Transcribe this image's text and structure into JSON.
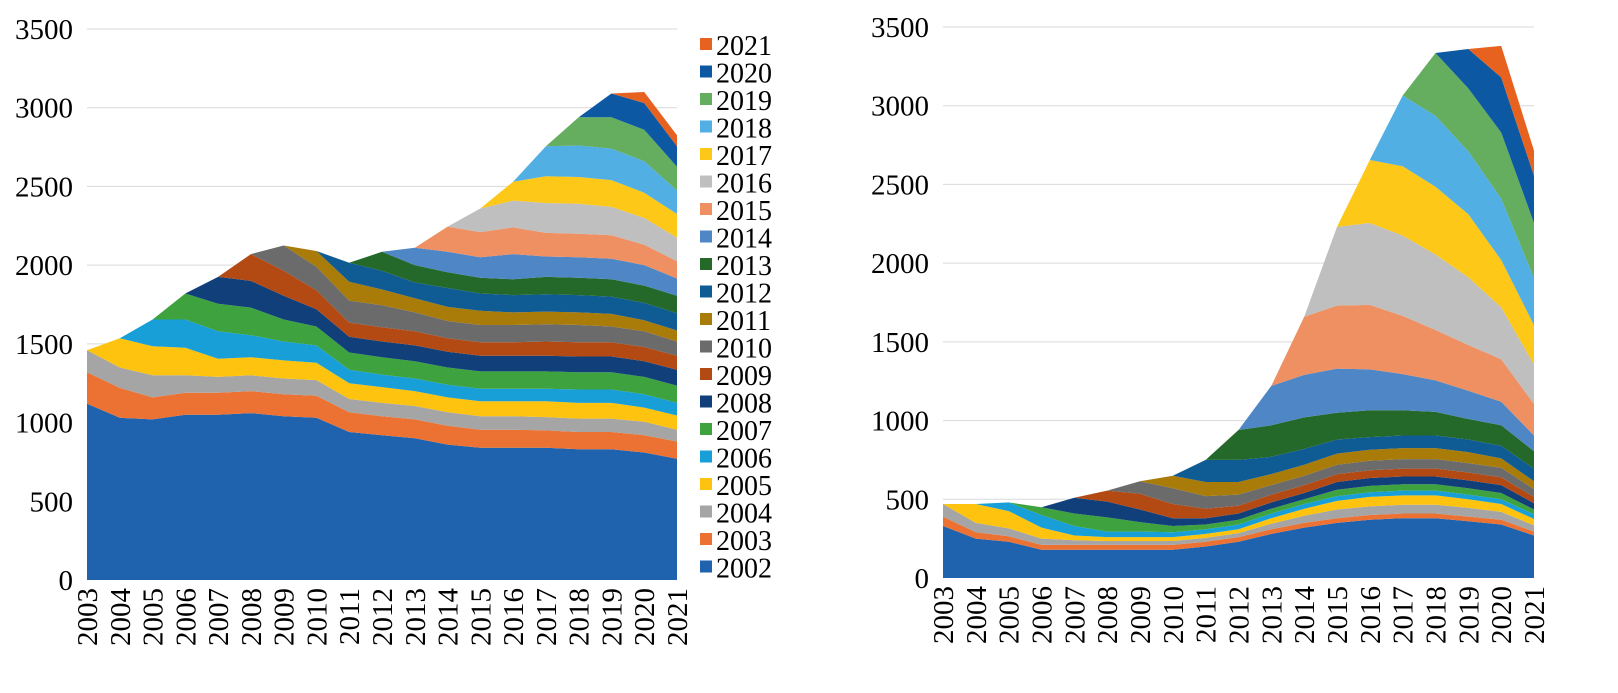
{
  "colors": {
    "2002": "#1f63ae",
    "2003": "#ec7234",
    "2004": "#a5a5a5",
    "2005": "#fdc30f",
    "2006": "#189fd8",
    "2007": "#3ea33f",
    "2008": "#113f7a",
    "2009": "#b34a14",
    "2010": "#6b6b6b",
    "2011": "#a97b08",
    "2012": "#0f5b93",
    "2013": "#24692a",
    "2014": "#4f86c6",
    "2015": "#ef9062",
    "2016": "#bfbfbf",
    "2017": "#fdc818",
    "2018": "#52afe3",
    "2019": "#65ad5f",
    "2020": "#0d58a3",
    "2021": "#e8621f"
  },
  "legend": [
    "2021",
    "2020",
    "2019",
    "2018",
    "2017",
    "2016",
    "2015",
    "2014",
    "2013",
    "2012",
    "2011",
    "2010",
    "2009",
    "2008",
    "2007",
    "2006",
    "2005",
    "2004",
    "2003",
    "2002"
  ],
  "chart_data": [
    {
      "type": "area",
      "stacked": true,
      "x": [
        "2003",
        "2004",
        "2005",
        "2006",
        "2007",
        "2008",
        "2009",
        "2010",
        "2011",
        "2012",
        "2013",
        "2014",
        "2015",
        "2016",
        "2017",
        "2018",
        "2019",
        "2020",
        "2021"
      ],
      "ylim": [
        0,
        3500
      ],
      "yticks": [
        0,
        500,
        1000,
        1500,
        2000,
        2500,
        3000,
        3500
      ],
      "grid": true,
      "legend_position": "right",
      "series": [
        {
          "name": "2002",
          "values": [
            1120,
            1030,
            1020,
            1050,
            1050,
            1060,
            1040,
            1030,
            940,
            920,
            900,
            860,
            840,
            840,
            840,
            830,
            830,
            810,
            770
          ]
        },
        {
          "name": "2003",
          "values": [
            200,
            190,
            140,
            140,
            140,
            140,
            140,
            140,
            125,
            120,
            120,
            120,
            115,
            115,
            110,
            110,
            110,
            110,
            110
          ]
        },
        {
          "name": "2004",
          "values": [
            140,
            130,
            140,
            110,
            100,
            100,
            100,
            100,
            85,
            85,
            85,
            85,
            85,
            85,
            85,
            85,
            85,
            85,
            75
          ]
        },
        {
          "name": "2005",
          "values": [
            null,
            185,
            185,
            175,
            115,
            115,
            115,
            110,
            100,
            100,
            95,
            95,
            95,
            95,
            100,
            100,
            100,
            90,
            90
          ]
        },
        {
          "name": "2006",
          "values": [
            null,
            null,
            170,
            180,
            175,
            140,
            120,
            110,
            85,
            80,
            80,
            80,
            80,
            80,
            80,
            85,
            85,
            85,
            80
          ]
        },
        {
          "name": "2007",
          "values": [
            null,
            null,
            null,
            165,
            175,
            175,
            140,
            120,
            110,
            110,
            110,
            110,
            110,
            110,
            110,
            110,
            110,
            110,
            110
          ]
        },
        {
          "name": "2008",
          "values": [
            null,
            null,
            null,
            null,
            170,
            170,
            150,
            110,
            100,
            100,
            100,
            100,
            100,
            100,
            100,
            100,
            100,
            100,
            100
          ]
        },
        {
          "name": "2009",
          "values": [
            null,
            null,
            null,
            null,
            null,
            170,
            160,
            120,
            90,
            90,
            90,
            85,
            85,
            85,
            90,
            90,
            90,
            90,
            90
          ]
        },
        {
          "name": "2010",
          "values": [
            null,
            null,
            null,
            null,
            null,
            null,
            160,
            150,
            140,
            140,
            120,
            110,
            110,
            110,
            110,
            110,
            100,
            100,
            90
          ]
        },
        {
          "name": "2011",
          "values": [
            null,
            null,
            null,
            null,
            null,
            null,
            null,
            100,
            120,
            100,
            90,
            90,
            90,
            80,
            80,
            80,
            80,
            70,
            70
          ]
        },
        {
          "name": "2012",
          "values": [
            null,
            null,
            null,
            null,
            null,
            null,
            null,
            null,
            120,
            120,
            100,
            120,
            110,
            110,
            110,
            110,
            110,
            110,
            110
          ]
        },
        {
          "name": "2013",
          "values": [
            null,
            null,
            null,
            null,
            null,
            null,
            null,
            null,
            null,
            120,
            110,
            100,
            100,
            100,
            110,
            110,
            110,
            110,
            110
          ]
        },
        {
          "name": "2014",
          "values": [
            null,
            null,
            null,
            null,
            null,
            null,
            null,
            null,
            null,
            null,
            110,
            130,
            130,
            160,
            130,
            130,
            130,
            130,
            110
          ]
        },
        {
          "name": "2015",
          "values": [
            null,
            null,
            null,
            null,
            null,
            null,
            null,
            null,
            null,
            null,
            null,
            160,
            160,
            170,
            150,
            150,
            150,
            130,
            110
          ]
        },
        {
          "name": "2016",
          "values": [
            null,
            null,
            null,
            null,
            null,
            null,
            null,
            null,
            null,
            null,
            null,
            null,
            150,
            170,
            190,
            190,
            180,
            170,
            150
          ]
        },
        {
          "name": "2017",
          "values": [
            null,
            null,
            null,
            null,
            null,
            null,
            null,
            null,
            null,
            null,
            null,
            null,
            null,
            120,
            170,
            170,
            170,
            160,
            150
          ]
        },
        {
          "name": "2018",
          "values": [
            null,
            null,
            null,
            null,
            null,
            null,
            null,
            null,
            null,
            null,
            null,
            null,
            null,
            null,
            190,
            200,
            200,
            200,
            150
          ]
        },
        {
          "name": "2019",
          "values": [
            null,
            null,
            null,
            null,
            null,
            null,
            null,
            null,
            null,
            null,
            null,
            null,
            null,
            null,
            null,
            180,
            200,
            200,
            150
          ]
        },
        {
          "name": "2020",
          "values": [
            null,
            null,
            null,
            null,
            null,
            null,
            null,
            null,
            null,
            null,
            null,
            null,
            null,
            null,
            null,
            null,
            150,
            170,
            130
          ]
        },
        {
          "name": "2021",
          "values": [
            null,
            null,
            null,
            null,
            null,
            null,
            null,
            null,
            null,
            null,
            null,
            null,
            null,
            null,
            null,
            null,
            null,
            70,
            70
          ]
        }
      ]
    },
    {
      "type": "area",
      "stacked": true,
      "x": [
        "2003",
        "2004",
        "2005",
        "2006",
        "2007",
        "2008",
        "2009",
        "2010",
        "2011",
        "2012",
        "2013",
        "2014",
        "2015",
        "2016",
        "2017",
        "2018",
        "2019",
        "2020",
        "2021"
      ],
      "ylim": [
        0,
        3500
      ],
      "yticks": [
        0,
        500,
        1000,
        1500,
        2000,
        2500,
        3000,
        3500
      ],
      "grid": true,
      "series": [
        {
          "name": "2002",
          "values": [
            330,
            250,
            230,
            180,
            180,
            180,
            180,
            180,
            200,
            230,
            280,
            320,
            350,
            370,
            380,
            380,
            360,
            340,
            270
          ]
        },
        {
          "name": "2003",
          "values": [
            60,
            40,
            35,
            30,
            30,
            30,
            30,
            30,
            30,
            30,
            30,
            30,
            30,
            30,
            30,
            30,
            30,
            30,
            25
          ]
        },
        {
          "name": "2004",
          "values": [
            80,
            60,
            50,
            40,
            30,
            25,
            25,
            25,
            25,
            25,
            35,
            45,
            55,
            55,
            55,
            55,
            55,
            50,
            40
          ]
        },
        {
          "name": "2005",
          "values": [
            null,
            120,
            110,
            70,
            30,
            25,
            25,
            25,
            25,
            25,
            35,
            45,
            55,
            60,
            60,
            60,
            55,
            50,
            40
          ]
        },
        {
          "name": "2006",
          "values": [
            null,
            null,
            55,
            80,
            60,
            35,
            35,
            30,
            30,
            30,
            30,
            30,
            30,
            30,
            30,
            30,
            30,
            30,
            30
          ]
        },
        {
          "name": "2007",
          "values": [
            null,
            null,
            null,
            50,
            80,
            90,
            60,
            40,
            30,
            30,
            30,
            30,
            40,
            40,
            40,
            40,
            40,
            40,
            30
          ]
        },
        {
          "name": "2008",
          "values": [
            null,
            null,
            null,
            null,
            100,
            100,
            80,
            50,
            40,
            40,
            40,
            40,
            50,
            50,
            50,
            50,
            50,
            50,
            40
          ]
        },
        {
          "name": "2009",
          "values": [
            null,
            null,
            null,
            null,
            null,
            70,
            100,
            90,
            60,
            50,
            50,
            50,
            50,
            50,
            50,
            50,
            50,
            50,
            40
          ]
        },
        {
          "name": "2010",
          "values": [
            null,
            null,
            null,
            null,
            null,
            null,
            80,
            100,
            80,
            70,
            60,
            60,
            60,
            60,
            60,
            60,
            60,
            60,
            50
          ]
        },
        {
          "name": "2011",
          "values": [
            null,
            null,
            null,
            null,
            null,
            null,
            null,
            80,
            90,
            80,
            70,
            70,
            70,
            70,
            70,
            70,
            70,
            60,
            50
          ]
        },
        {
          "name": "2012",
          "values": [
            null,
            null,
            null,
            null,
            null,
            null,
            null,
            null,
            140,
            140,
            110,
            100,
            90,
            80,
            80,
            80,
            80,
            80,
            80
          ]
        },
        {
          "name": "2013",
          "values": [
            null,
            null,
            null,
            null,
            null,
            null,
            null,
            null,
            null,
            190,
            200,
            200,
            170,
            170,
            160,
            150,
            130,
            130,
            110
          ]
        },
        {
          "name": "2014",
          "values": [
            null,
            null,
            null,
            null,
            null,
            null,
            null,
            null,
            null,
            null,
            250,
            270,
            280,
            260,
            230,
            200,
            180,
            150,
            100
          ]
        },
        {
          "name": "2015",
          "values": [
            null,
            null,
            null,
            null,
            null,
            null,
            null,
            null,
            null,
            null,
            null,
            370,
            400,
            410,
            370,
            320,
            290,
            270,
            200
          ]
        },
        {
          "name": "2016",
          "values": [
            null,
            null,
            null,
            null,
            null,
            null,
            null,
            null,
            null,
            null,
            null,
            null,
            500,
            520,
            510,
            480,
            430,
            330,
            250
          ]
        },
        {
          "name": "2017",
          "values": [
            null,
            null,
            null,
            null,
            null,
            null,
            null,
            null,
            null,
            null,
            null,
            null,
            null,
            400,
            440,
            430,
            400,
            300,
            250
          ]
        },
        {
          "name": "2018",
          "values": [
            null,
            null,
            null,
            null,
            null,
            null,
            null,
            null,
            null,
            null,
            null,
            null,
            null,
            null,
            450,
            450,
            400,
            390,
            300
          ]
        },
        {
          "name": "2019",
          "values": [
            null,
            null,
            null,
            null,
            null,
            null,
            null,
            null,
            null,
            null,
            null,
            null,
            null,
            null,
            null,
            400,
            400,
            420,
            350
          ]
        },
        {
          "name": "2020",
          "values": [
            null,
            null,
            null,
            null,
            null,
            null,
            null,
            null,
            null,
            null,
            null,
            null,
            null,
            null,
            null,
            null,
            250,
            350,
            300
          ]
        },
        {
          "name": "2021",
          "values": [
            null,
            null,
            null,
            null,
            null,
            null,
            null,
            null,
            null,
            null,
            null,
            null,
            null,
            null,
            null,
            null,
            null,
            200,
            160
          ]
        }
      ]
    }
  ]
}
